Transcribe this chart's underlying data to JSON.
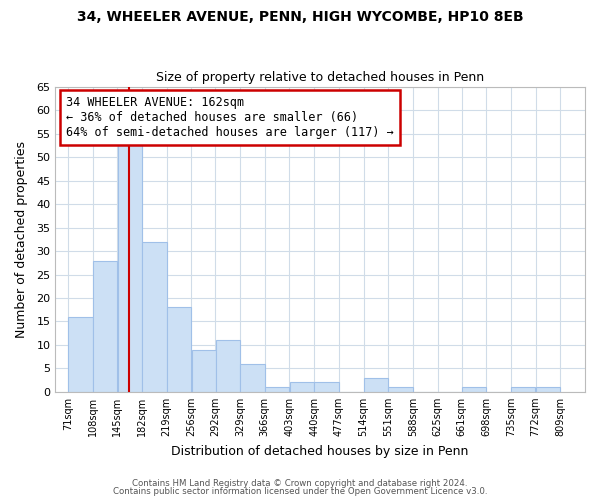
{
  "title1": "34, WHEELER AVENUE, PENN, HIGH WYCOMBE, HP10 8EB",
  "title2": "Size of property relative to detached houses in Penn",
  "xlabel": "Distribution of detached houses by size in Penn",
  "ylabel": "Number of detached properties",
  "bar_left_edges": [
    71,
    108,
    145,
    182,
    219,
    256,
    292,
    329,
    366,
    403,
    440,
    477,
    514,
    551,
    588,
    625,
    661,
    698,
    735,
    772
  ],
  "bar_heights": [
    16,
    28,
    53,
    32,
    18,
    9,
    11,
    6,
    1,
    2,
    2,
    0,
    3,
    1,
    0,
    0,
    1,
    0,
    1,
    1
  ],
  "bin_width": 37,
  "bar_color": "#cce0f5",
  "bar_edgecolor": "#a0c0e8",
  "vline_x": 162,
  "vline_color": "#cc0000",
  "annotation_line1": "34 WHEELER AVENUE: 162sqm",
  "annotation_line2": "← 36% of detached houses are smaller (66)",
  "annotation_line3": "64% of semi-detached houses are larger (117) →",
  "annotation_box_edgecolor": "#cc0000",
  "annotation_box_facecolor": "#ffffff",
  "ylim": [
    0,
    65
  ],
  "yticks": [
    0,
    5,
    10,
    15,
    20,
    25,
    30,
    35,
    40,
    45,
    50,
    55,
    60,
    65
  ],
  "xtick_labels": [
    "71sqm",
    "108sqm",
    "145sqm",
    "182sqm",
    "219sqm",
    "256sqm",
    "292sqm",
    "329sqm",
    "366sqm",
    "403sqm",
    "440sqm",
    "477sqm",
    "514sqm",
    "551sqm",
    "588sqm",
    "625sqm",
    "661sqm",
    "698sqm",
    "735sqm",
    "772sqm",
    "809sqm"
  ],
  "xtick_positions": [
    71,
    108,
    145,
    182,
    219,
    256,
    292,
    329,
    366,
    403,
    440,
    477,
    514,
    551,
    588,
    625,
    661,
    698,
    735,
    772,
    809
  ],
  "footer1": "Contains HM Land Registry data © Crown copyright and database right 2024.",
  "footer2": "Contains public sector information licensed under the Open Government Licence v3.0.",
  "bg_color": "#ffffff",
  "grid_color": "#d0dce8",
  "xlim_left": 52,
  "xlim_right": 846
}
